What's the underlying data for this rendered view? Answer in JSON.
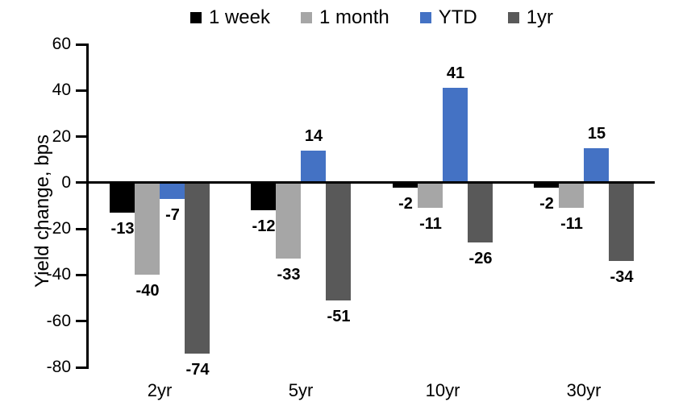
{
  "chart_data": {
    "type": "bar",
    "title": "",
    "xlabel": "",
    "ylabel": "Yield change, bps",
    "ylim": [
      -80,
      60
    ],
    "yticks": [
      60,
      40,
      20,
      0,
      -20,
      -40,
      -60,
      -80
    ],
    "categories": [
      "2yr",
      "5yr",
      "10yr",
      "30yr"
    ],
    "series": [
      {
        "name": "1 week",
        "color": "#000000",
        "values": [
          -13,
          -12,
          -2,
          -2
        ]
      },
      {
        "name": "1 month",
        "color": "#a6a6a6",
        "values": [
          -40,
          -33,
          -11,
          -11
        ]
      },
      {
        "name": "YTD",
        "color": "#4472c4",
        "values": [
          -7,
          14,
          41,
          15
        ]
      },
      {
        "name": "1yr",
        "color": "#595959",
        "values": [
          -74,
          -51,
          -26,
          -34
        ]
      }
    ],
    "value_labels": true,
    "grid": false,
    "legend_position": "top",
    "axis_color": "#000000",
    "text_color": "#000000"
  }
}
